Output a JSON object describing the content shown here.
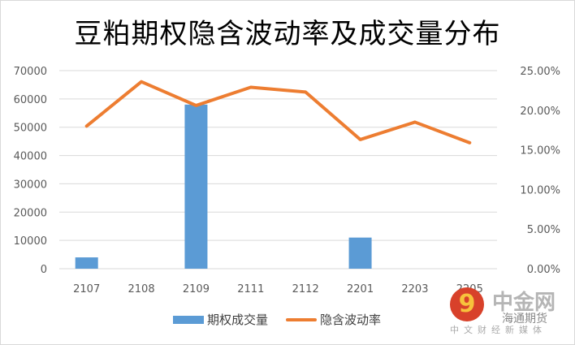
{
  "chart_data": {
    "type": "bar+line",
    "title": "豆粕期权隐含波动率及成交量分布",
    "categories": [
      "2107",
      "2108",
      "2109",
      "2111",
      "2112",
      "2201",
      "2203",
      "2205"
    ],
    "series": [
      {
        "name": "期权成交量",
        "type": "bar",
        "axis": "left",
        "color": "#5b9bd5",
        "values": [
          4000,
          0,
          58000,
          0,
          0,
          11000,
          0,
          0
        ]
      },
      {
        "name": "隐含波动率",
        "type": "line",
        "axis": "right",
        "color": "#ed7d31",
        "values": [
          18.0,
          23.6,
          20.6,
          22.9,
          22.3,
          16.3,
          18.5,
          15.9
        ]
      }
    ],
    "left_axis": {
      "range": [
        0,
        70000
      ],
      "ticks": [
        "0",
        "10000",
        "20000",
        "30000",
        "40000",
        "50000",
        "60000",
        "70000"
      ]
    },
    "right_axis": {
      "range": [
        0,
        25
      ],
      "ticks": [
        "0.00%",
        "5.00%",
        "10.00%",
        "15.00%",
        "20.00%",
        "25.00%"
      ]
    },
    "grid": true,
    "legend_position": "bottom"
  },
  "watermark": {
    "name": "中金网",
    "sub": "海通期货",
    "tagline": "中文财经新媒体"
  }
}
